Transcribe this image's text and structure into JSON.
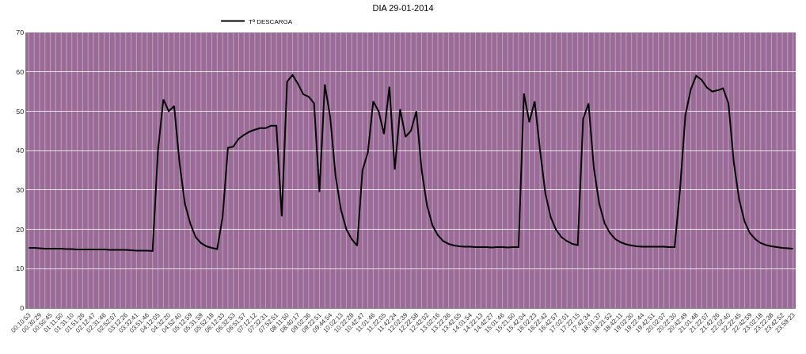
{
  "chart_data": {
    "type": "line",
    "title": "DIA 29-01-2014",
    "categories": [
      "00:10:53",
      null,
      "00:30:29",
      null,
      "00:50:45",
      null,
      "01:11:50",
      null,
      "01:31:10",
      null,
      "01:51:26",
      null,
      "02:12:47",
      null,
      "02:31:46",
      null,
      "02:52:07",
      null,
      "03:12:26",
      null,
      "03:32:41",
      null,
      "03:51:46",
      null,
      "04:12:05",
      null,
      "04:32:20",
      null,
      "04:52:40",
      null,
      "05:12:59",
      null,
      "05:31:59",
      null,
      "05:52:18",
      null,
      "06:12:33",
      null,
      "06:32:53",
      null,
      "06:51:57",
      null,
      "07:12:12",
      null,
      "07:32:31",
      null,
      "07:52:51",
      null,
      "08:11:50",
      null,
      "08:40:17",
      null,
      "09:02:36",
      null,
      "09:22:51",
      null,
      "09:44:54",
      null,
      "10:02:13",
      null,
      "10:22:28",
      null,
      "10:42:47",
      null,
      "11:01:46",
      null,
      "11:22:05",
      null,
      "11:42:24",
      null,
      "12:02:39",
      null,
      "12:22:58",
      null,
      "12:42:02",
      null,
      "13:02:16",
      null,
      "13:22:36",
      null,
      "13:42:55",
      null,
      "14:01:54",
      null,
      "14:22:13",
      null,
      "14:42:27",
      null,
      "15:01:46",
      null,
      "15:21:50",
      null,
      "15:42:04",
      null,
      "16:02:23",
      null,
      "16:22:42",
      null,
      "16:42:57",
      null,
      "17:02:01",
      null,
      "17:22:15",
      null,
      "17:42:34",
      null,
      "18:01:37",
      null,
      "18:21:52",
      null,
      "18:42:11",
      null,
      "19:02:30",
      null,
      "19:22:44",
      null,
      "19:42:51",
      null,
      "20:02:07",
      null,
      "20:22:30",
      null,
      "20:42:49",
      null,
      "21:01:48",
      null,
      "21:22:07",
      null,
      "21:42:26",
      null,
      "22:02:40",
      null,
      "22:22:45",
      null,
      "22:42:59",
      null,
      "23:02:18",
      null,
      "23:22:38",
      null,
      "23:42:52",
      null,
      "23:59:23"
    ],
    "series": [
      {
        "name": "Tª DESCARGA",
        "color": "#000000",
        "values": [
          15.3,
          15.3,
          15.2,
          15.1,
          15.1,
          15.1,
          15.1,
          15.0,
          15.0,
          14.9,
          14.9,
          14.9,
          14.9,
          14.9,
          14.9,
          14.8,
          14.8,
          14.8,
          14.8,
          14.7,
          14.6,
          14.6,
          14.6,
          14.5,
          40,
          53,
          50,
          51.3,
          37,
          26.5,
          21.5,
          18,
          16.5,
          15.7,
          15.3,
          15,
          23,
          40.7,
          41,
          43,
          44,
          44.8,
          45.3,
          45.7,
          45.7,
          46.3,
          46.3,
          23.3,
          57.5,
          59.2,
          57,
          54.3,
          53.7,
          52,
          29.5,
          56.8,
          48.5,
          33.5,
          25,
          20,
          17.5,
          15.8,
          35,
          39.5,
          52.5,
          50,
          44.2,
          56.2,
          35.2,
          50.5,
          43.5,
          45,
          50,
          35,
          26,
          21,
          18.5,
          17,
          16.3,
          15.9,
          15.7,
          15.6,
          15.6,
          15.5,
          15.5,
          15.5,
          15.4,
          15.5,
          15.5,
          15.4,
          15.5,
          15.5,
          54.5,
          47.2,
          52.5,
          40,
          29,
          23,
          19.8,
          18,
          17,
          16.3,
          16,
          48,
          52,
          35.5,
          26.5,
          21.5,
          19,
          17.5,
          16.7,
          16.2,
          15.9,
          15.7,
          15.6,
          15.6,
          15.6,
          15.6,
          15.6,
          15.5,
          15.5,
          30,
          49,
          55.5,
          59,
          58,
          56,
          55,
          55.3,
          55.8,
          52,
          37,
          27.5,
          22,
          19,
          17.5,
          16.5,
          16,
          15.7,
          15.5,
          15.3,
          15.2,
          15.1
        ]
      }
    ],
    "ylim": [
      0,
      70
    ],
    "yticks": [
      0,
      10,
      20,
      30,
      40,
      50,
      60,
      70
    ],
    "grid": true,
    "legend": "top",
    "marker": "none",
    "line_style": "solid"
  }
}
